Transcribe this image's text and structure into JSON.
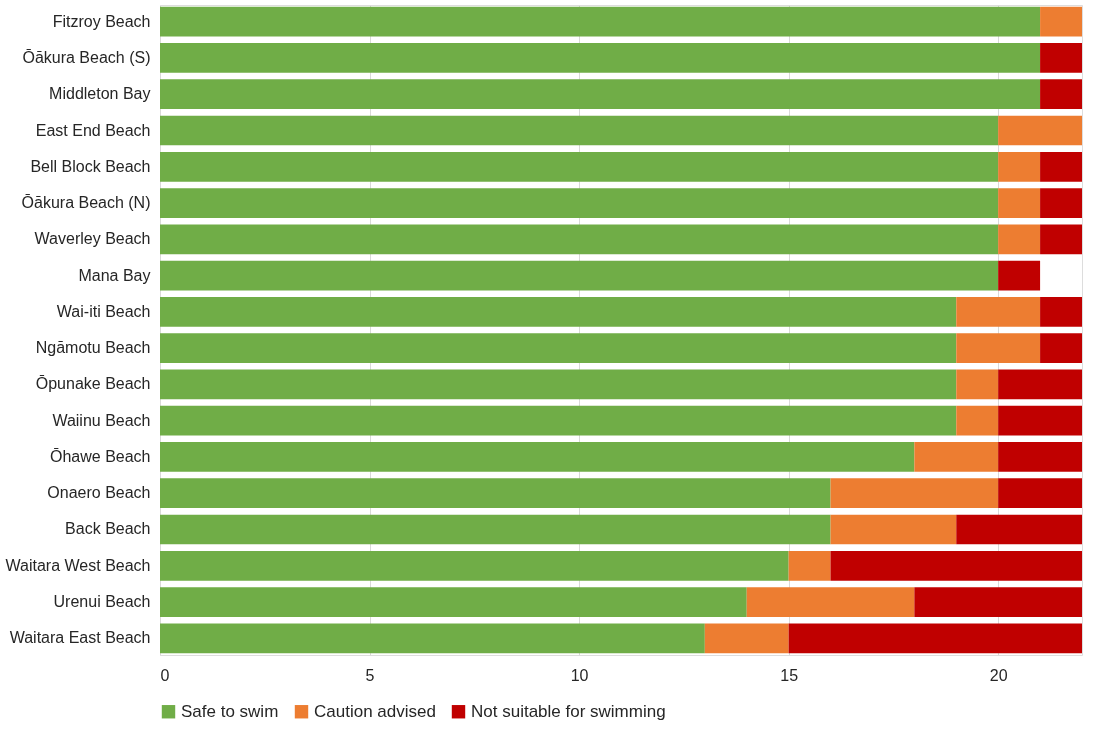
{
  "chart_data": {
    "type": "bar",
    "orientation": "horizontal",
    "stacked": true,
    "categories": [
      "Fitzroy Beach",
      "Ōākura Beach (S)",
      "Middleton Bay",
      "East End Beach",
      "Bell Block Beach",
      "Ōākura Beach (N)",
      "Waverley Beach",
      "Mana Bay",
      "Wai-iti Beach",
      "Ngāmotu Beach",
      "Ōpunake Beach",
      "Waiinu Beach",
      "Ōhawe Beach",
      "Onaero Beach",
      "Back Beach",
      "Waitara West Beach",
      "Urenui Beach",
      "Waitara East Beach"
    ],
    "series": [
      {
        "name": "Safe to swim",
        "color": "#70ad47",
        "values": [
          21,
          21,
          21,
          20,
          20,
          20,
          20,
          20,
          19,
          19,
          19,
          19,
          18,
          16,
          16,
          15,
          14,
          13
        ]
      },
      {
        "name": "Caution advised",
        "color": "#ed7d31",
        "values": [
          1,
          0,
          0,
          2,
          1,
          1,
          1,
          0,
          2,
          2,
          1,
          1,
          2,
          4,
          3,
          1,
          4,
          2
        ]
      },
      {
        "name": "Not suitable for swimming",
        "color": "#c00000",
        "values": [
          0,
          1,
          1,
          0,
          1,
          1,
          1,
          1,
          1,
          1,
          2,
          2,
          2,
          2,
          3,
          6,
          4,
          7
        ]
      }
    ],
    "xlim": [
      0,
      22
    ],
    "xticks": [
      0,
      5,
      10,
      15,
      20
    ],
    "grid": "x",
    "legend": "bottom"
  }
}
